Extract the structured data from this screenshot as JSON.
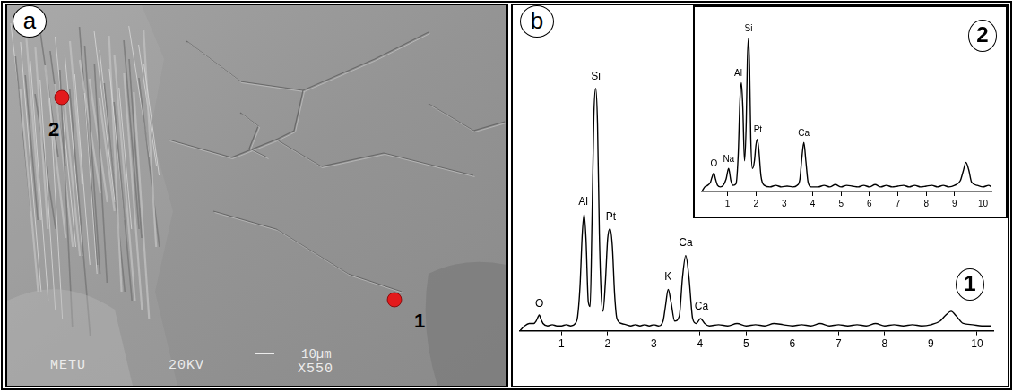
{
  "panel_a": {
    "letter": "a",
    "scale_bar": "10µm",
    "labels": [
      "METU",
      "20KV",
      "X550"
    ],
    "points": [
      {
        "label": "1",
        "color": "#e31a1c"
      },
      {
        "label": "2",
        "color": "#e31a1c"
      }
    ]
  },
  "panel_b": {
    "letter": "b"
  },
  "chart_data": [
    {
      "type": "line",
      "title": "1",
      "color": "#000000",
      "x": [
        0.1,
        0.2,
        0.3,
        0.4,
        0.45,
        0.5,
        0.52,
        0.55,
        0.6,
        0.7,
        0.8,
        0.9,
        1.0,
        1.1,
        1.2,
        1.3,
        1.35,
        1.4,
        1.45,
        1.49,
        1.53,
        1.58,
        1.62,
        1.66,
        1.7,
        1.74,
        1.78,
        1.82,
        1.86,
        1.9,
        1.95,
        2.0,
        2.05,
        2.1,
        2.15,
        2.2,
        2.3,
        2.4,
        2.5,
        2.6,
        2.7,
        2.8,
        2.9,
        3.0,
        3.1,
        3.2,
        3.25,
        3.31,
        3.37,
        3.45,
        3.55,
        3.62,
        3.69,
        3.76,
        3.84,
        3.92,
        4.01,
        4.1,
        4.2,
        4.4,
        4.6,
        4.8,
        5.0,
        5.2,
        5.4,
        5.6,
        5.8,
        6.0,
        6.2,
        6.4,
        6.6,
        6.8,
        7.0,
        7.2,
        7.4,
        7.6,
        7.8,
        8.0,
        8.2,
        8.4,
        8.6,
        8.8,
        9.0,
        9.2,
        9.3,
        9.44,
        9.55,
        9.7,
        9.9,
        10.1,
        10.3
      ],
      "values": [
        0,
        2,
        3,
        3,
        4,
        6,
        6.5,
        5,
        3,
        2,
        2.5,
        2,
        2,
        2.5,
        2,
        3,
        6,
        18,
        40,
        48,
        38,
        12,
        10,
        45,
        88,
        100,
        85,
        40,
        15,
        8,
        20,
        38,
        42,
        35,
        15,
        5,
        3,
        2.5,
        2,
        2.5,
        2,
        2.5,
        2,
        2.5,
        2,
        4,
        10,
        17,
        12,
        4,
        6,
        22,
        31,
        22,
        5,
        3,
        5,
        3,
        2,
        2.5,
        2,
        3,
        2,
        2.5,
        2,
        3,
        2.5,
        2,
        2.5,
        2,
        3,
        2,
        2.5,
        2,
        2.5,
        2,
        3,
        2,
        2.5,
        2,
        2.5,
        2,
        2.5,
        4,
        6,
        8,
        6,
        3,
        2.5,
        2,
        2
      ],
      "xlim": [
        0.1,
        10.35
      ],
      "xticks": [
        1,
        2,
        3,
        4,
        5,
        6,
        7,
        8,
        9,
        10
      ],
      "ylim": [
        0,
        115
      ],
      "tick_labels": "x",
      "grid": false,
      "annotations": [
        {
          "text": "O",
          "x": 0.52,
          "y": 8
        },
        {
          "text": "Al",
          "x": 1.47,
          "y": 50
        },
        {
          "text": "Si",
          "x": 1.74,
          "y": 102
        },
        {
          "text": "Pt",
          "x": 2.07,
          "y": 44
        },
        {
          "text": "K",
          "x": 3.31,
          "y": 19
        },
        {
          "text": "Ca",
          "x": 3.69,
          "y": 33
        },
        {
          "text": "Ca",
          "x": 4.03,
          "y": 7
        }
      ]
    },
    {
      "type": "line",
      "title": "2",
      "color": "#000000",
      "x": [
        0.1,
        0.2,
        0.3,
        0.4,
        0.45,
        0.52,
        0.58,
        0.65,
        0.75,
        0.85,
        0.95,
        1.04,
        1.12,
        1.2,
        1.3,
        1.38,
        1.44,
        1.49,
        1.54,
        1.6,
        1.66,
        1.7,
        1.74,
        1.78,
        1.82,
        1.88,
        1.95,
        2.0,
        2.05,
        2.1,
        2.18,
        2.3,
        2.5,
        2.7,
        2.9,
        3.1,
        3.3,
        3.45,
        3.55,
        3.62,
        3.69,
        3.76,
        3.84,
        3.95,
        4.2,
        4.4,
        4.6,
        4.8,
        5.0,
        5.2,
        5.4,
        5.6,
        5.8,
        6.0,
        6.2,
        6.4,
        6.6,
        6.8,
        7.0,
        7.2,
        7.4,
        7.6,
        7.8,
        8.0,
        8.2,
        8.4,
        8.6,
        8.8,
        9.0,
        9.2,
        9.3,
        9.4,
        9.5,
        9.6,
        9.8,
        10.0,
        10.2,
        10.3
      ],
      "values": [
        0,
        3,
        4,
        6,
        9,
        12,
        8,
        4,
        3,
        4,
        8,
        15,
        7,
        4,
        5,
        25,
        60,
        71,
        55,
        20,
        45,
        85,
        100,
        80,
        35,
        15,
        20,
        30,
        34,
        28,
        10,
        4,
        3,
        4,
        3,
        3.5,
        3,
        4,
        8,
        22,
        32,
        20,
        6,
        3,
        3,
        4,
        3,
        4.5,
        3,
        4,
        3.5,
        3,
        4,
        3,
        4.5,
        3,
        4,
        3,
        3.5,
        4,
        3,
        4,
        3,
        3.5,
        4,
        3,
        4,
        3,
        4,
        7,
        13,
        19,
        14,
        6,
        4,
        3,
        4,
        3
      ],
      "xlim": [
        0.1,
        10.3
      ],
      "xticks": [
        1,
        2,
        3,
        4,
        5,
        6,
        7,
        8,
        9,
        10
      ],
      "ylim": [
        0,
        115
      ],
      "tick_labels": "x",
      "grid": false,
      "annotations": [
        {
          "text": "O",
          "x": 0.52,
          "y": 14
        },
        {
          "text": "Na",
          "x": 1.04,
          "y": 17
        },
        {
          "text": "Al",
          "x": 1.38,
          "y": 73
        },
        {
          "text": "Si",
          "x": 1.74,
          "y": 102
        },
        {
          "text": "Pt",
          "x": 2.07,
          "y": 36
        },
        {
          "text": "Ca",
          "x": 3.69,
          "y": 34
        }
      ]
    }
  ]
}
